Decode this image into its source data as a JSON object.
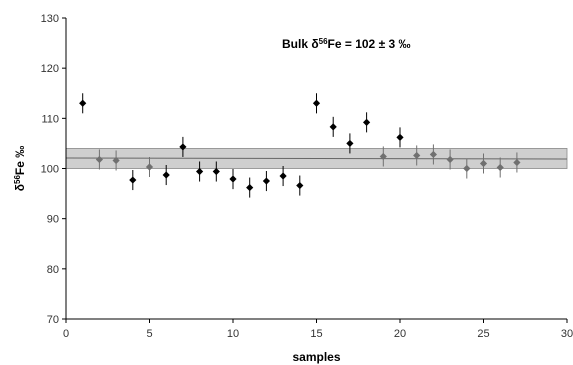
{
  "chart_data": {
    "type": "scatter",
    "xlabel": "samples",
    "ylabel": {
      "base": "δ",
      "sup": "56",
      "main": "Fe ‰"
    },
    "annotation": {
      "prefix": "Bulk δ",
      "sup": "56",
      "suffix": "Fe = 102 ± 3 ‰"
    },
    "xlim": [
      0,
      30
    ],
    "ylim": [
      70,
      130
    ],
    "xticks": [
      0,
      5,
      10,
      15,
      20,
      25,
      30
    ],
    "yticks": [
      70,
      80,
      90,
      100,
      110,
      120,
      130
    ],
    "grid": false,
    "band": {
      "center": 102,
      "low": 100,
      "high": 104
    },
    "series": [
      {
        "color": "#000000",
        "marker": "diamond",
        "points": [
          {
            "x": 1,
            "y": 113,
            "err": 2
          },
          {
            "x": 4,
            "y": 97.7,
            "err": 2
          },
          {
            "x": 6,
            "y": 98.7,
            "err": 2
          },
          {
            "x": 7,
            "y": 104.3,
            "err": 2
          },
          {
            "x": 8,
            "y": 99.4,
            "err": 2
          },
          {
            "x": 9,
            "y": 99.4,
            "err": 2
          },
          {
            "x": 10,
            "y": 97.9,
            "err": 2
          },
          {
            "x": 11,
            "y": 96.2,
            "err": 2
          },
          {
            "x": 12,
            "y": 97.5,
            "err": 2
          },
          {
            "x": 13,
            "y": 98.5,
            "err": 2
          },
          {
            "x": 14,
            "y": 96.6,
            "err": 2
          },
          {
            "x": 15,
            "y": 113,
            "err": 2
          },
          {
            "x": 16,
            "y": 108.3,
            "err": 2
          },
          {
            "x": 17,
            "y": 105,
            "err": 2
          },
          {
            "x": 18,
            "y": 109.2,
            "err": 2
          },
          {
            "x": 20,
            "y": 106.2,
            "err": 2
          }
        ]
      },
      {
        "color": "#707070",
        "marker": "diamond",
        "points": [
          {
            "x": 2,
            "y": 101.8,
            "err": 2
          },
          {
            "x": 3,
            "y": 101.6,
            "err": 2
          },
          {
            "x": 5,
            "y": 100.3,
            "err": 2
          },
          {
            "x": 19,
            "y": 102.4,
            "err": 2
          },
          {
            "x": 21,
            "y": 102.6,
            "err": 2
          },
          {
            "x": 22,
            "y": 102.8,
            "err": 2
          },
          {
            "x": 23,
            "y": 101.8,
            "err": 2
          },
          {
            "x": 24,
            "y": 100,
            "err": 2
          },
          {
            "x": 25,
            "y": 101,
            "err": 2
          },
          {
            "x": 26,
            "y": 100.2,
            "err": 2
          },
          {
            "x": 27,
            "y": 101.2,
            "err": 2
          }
        ]
      }
    ]
  }
}
